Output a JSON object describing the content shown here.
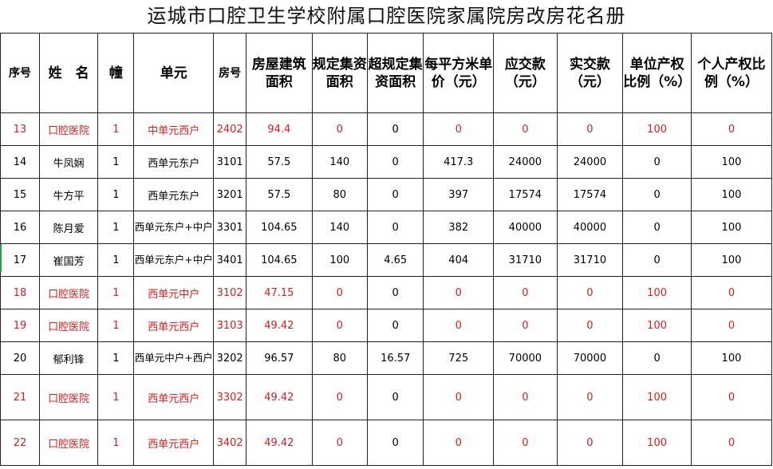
{
  "title": "运城市口腔卫生学校附属口腔医院家属院房改房花名册",
  "headers": [
    "序号",
    "姓　名",
    "幢",
    "单元",
    "房号",
    "房屋建筑面积",
    "规定集资面积",
    "超规定集资面积",
    "每平方米单价（元）",
    "应交款（元）",
    "实交款（元）",
    "单位产权比例（%）",
    "个人产权比例（%）"
  ],
  "rows": [
    {
      "no": "13",
      "name": "口腔医院",
      "bld": "1",
      "unit": "中单元西户",
      "room": "2402",
      "area": "94.4",
      "std": "0",
      "over": "0",
      "price": "0",
      "due": "0",
      "paid": "0",
      "unit_pct": "100",
      "pers_pct": "0",
      "highlight": true
    },
    {
      "no": "14",
      "name": "牛凤娴",
      "bld": "1",
      "unit": "西单元东户",
      "room": "3101",
      "area": "57.5",
      "std": "140",
      "over": "0",
      "price": "417.3",
      "due": "24000",
      "paid": "24000",
      "unit_pct": "0",
      "pers_pct": "100",
      "highlight": false
    },
    {
      "no": "15",
      "name": "牛方平",
      "bld": "1",
      "unit": "西单元东户",
      "room": "3201",
      "area": "57.5",
      "std": "80",
      "over": "0",
      "price": "397",
      "due": "17574",
      "paid": "17574",
      "unit_pct": "0",
      "pers_pct": "100",
      "highlight": false
    },
    {
      "no": "16",
      "name": "陈月爱",
      "bld": "1",
      "unit": "西单元东户+中户",
      "room": "3301",
      "area": "104.65",
      "std": "140",
      "over": "0",
      "price": "382",
      "due": "40000",
      "paid": "40000",
      "unit_pct": "0",
      "pers_pct": "100",
      "highlight": false
    },
    {
      "no": "17",
      "name": "崔国芳",
      "bld": "1",
      "unit": "西单元东户+中户",
      "room": "3401",
      "area": "104.65",
      "std": "100",
      "over": "4.65",
      "price": "404",
      "due": "31710",
      "paid": "31710",
      "unit_pct": "0",
      "pers_pct": "100",
      "highlight": false
    },
    {
      "no": "18",
      "name": "口腔医院",
      "bld": "1",
      "unit": "西单元中户",
      "room": "3102",
      "area": "47.15",
      "std": "0",
      "over": "0",
      "price": "0",
      "due": "0",
      "paid": "0",
      "unit_pct": "100",
      "pers_pct": "0",
      "highlight": true
    },
    {
      "no": "19",
      "name": "口腔医院",
      "bld": "1",
      "unit": "西单元西户",
      "room": "3103",
      "area": "49.42",
      "std": "0",
      "over": "0",
      "price": "0",
      "due": "0",
      "paid": "0",
      "unit_pct": "100",
      "pers_pct": "0",
      "highlight": true
    },
    {
      "no": "20",
      "name": "郁利锋",
      "bld": "1",
      "unit": "西单元中户+西户",
      "room": "3202",
      "area": "96.57",
      "std": "80",
      "over": "16.57",
      "price": "725",
      "due": "70000",
      "paid": "70000",
      "unit_pct": "0",
      "pers_pct": "100",
      "highlight": false
    },
    {
      "no": "21",
      "name": "口腔医院",
      "bld": "1",
      "unit": "西单元西户",
      "room": "3302",
      "area": "49.42",
      "std": "0",
      "over": "0",
      "price": "0",
      "due": "0",
      "paid": "0",
      "unit_pct": "100",
      "pers_pct": "0",
      "highlight": true
    },
    {
      "no": "22",
      "name": "口腔医院",
      "bld": "1",
      "unit": "西单元西户",
      "room": "3402",
      "area": "49.42",
      "std": "0",
      "over": "0",
      "price": "0",
      "due": "0",
      "paid": "0",
      "unit_pct": "100",
      "pers_pct": "0",
      "highlight": true
    }
  ],
  "colors": {
    "highlight_text": "#d42020",
    "grid": "#222222",
    "selection_marker": "#2e9e4a"
  }
}
